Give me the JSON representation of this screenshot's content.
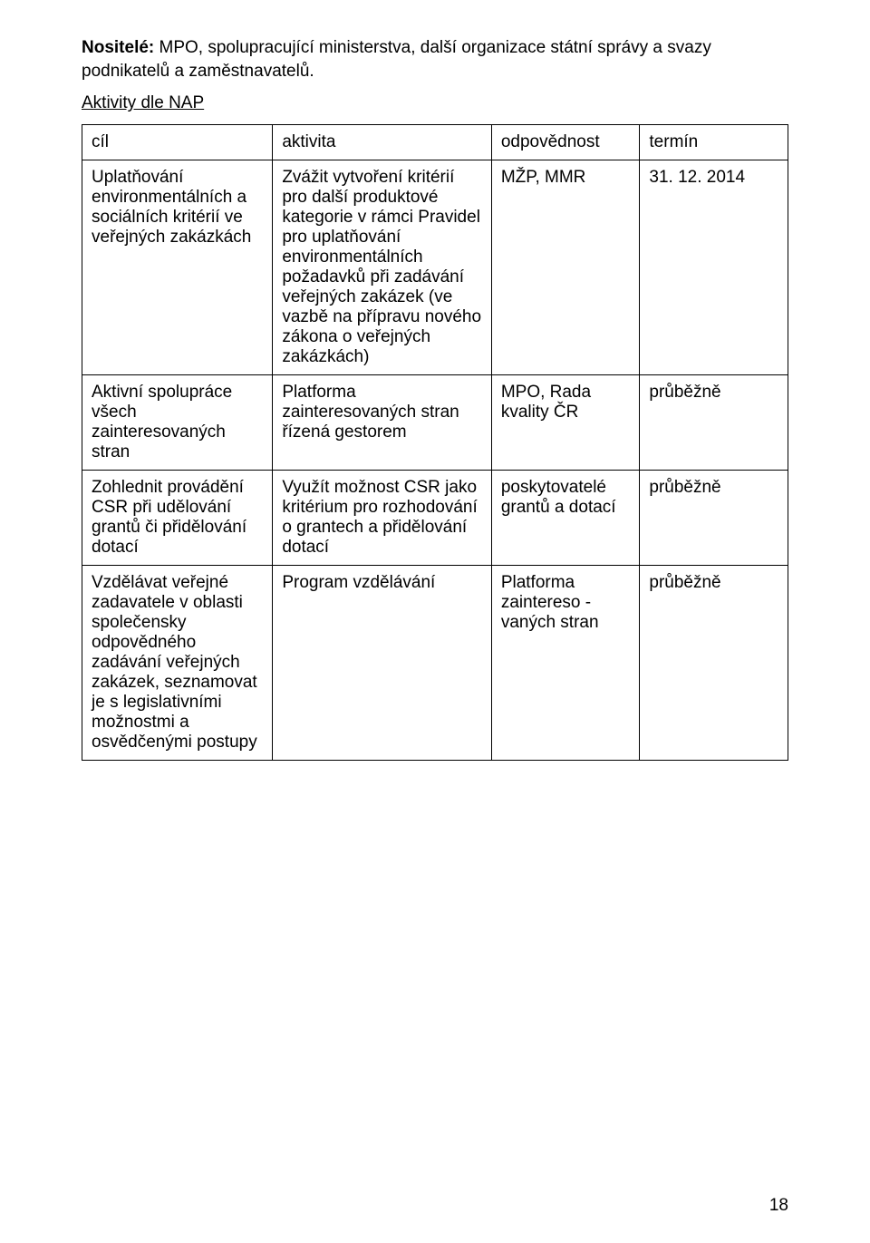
{
  "intro": {
    "label": "Nositelé:",
    "text": "  MPO, spolupracující ministerstva, další organizace státní správy a svazy podnikatelů a zaměstnavatelů."
  },
  "subheading": "Aktivity dle NAP",
  "table": {
    "headers": [
      "cíl",
      "aktivita",
      "odpovědnost",
      "termín"
    ],
    "rows": [
      {
        "cil": "Uplatňování environmentálních a sociálních kritérií ve veřejných zakázkách",
        "aktivita": "Zvážit vytvoření kritérií pro další produktové kategorie v rámci Pravidel pro uplatňování environmentálních požadavků při zadávání veřejných zakázek (ve vazbě na přípravu nového zákona o veřejných zakázkách)",
        "odpovednost": "MŽP, MMR",
        "termin": "31. 12. 2014"
      },
      {
        "cil": "Aktivní spolupráce všech zainteresovaných stran",
        "aktivita": "Platforma zainteresovaných stran řízená gestorem",
        "odpovednost": "MPO, Rada kvality ČR",
        "termin": "průběžně"
      },
      {
        "cil": "Zohlednit provádění CSR při udělování grantů či přidělování dotací",
        "aktivita": "Využít možnost CSR jako kritérium pro rozhodování o grantech a přidělování dotací",
        "odpovednost": "poskytovatelé grantů a dotací",
        "termin": "průběžně"
      },
      {
        "cil": "Vzdělávat veřejné zadavatele v oblasti společensky odpovědného zadávání veřejných zakázek, seznamovat je s legislativními možnostmi a osvědčenými postupy",
        "aktivita": "Program vzdělávání",
        "odpovednost": "Platforma zaintereso - vaných stran",
        "termin": "průběžně"
      }
    ]
  },
  "page_number": "18"
}
